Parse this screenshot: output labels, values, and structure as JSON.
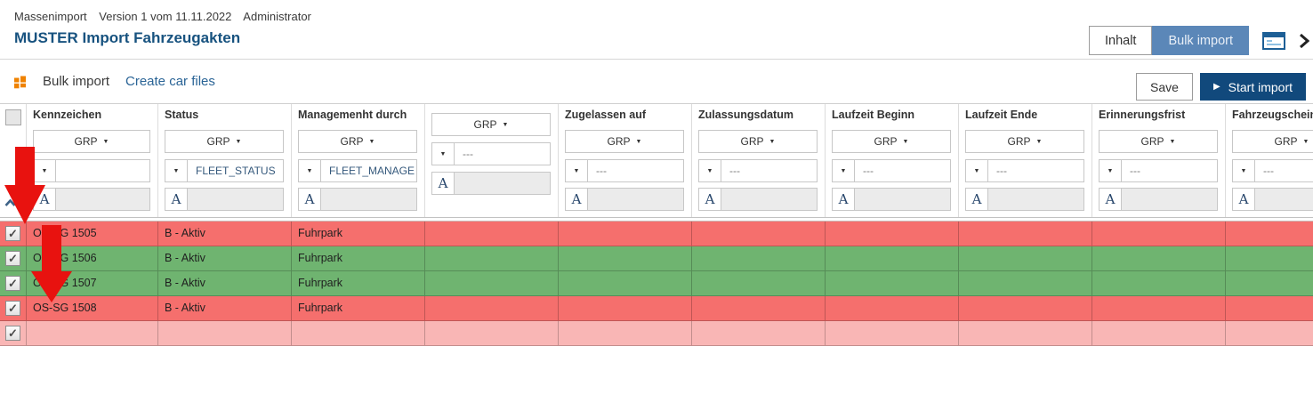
{
  "header": {
    "app_name": "Massenimport",
    "version_text": "Version 1 vom 11.11.2022",
    "user": "Administrator",
    "title": "MUSTER Import Fahrzeugakten",
    "nav": [
      {
        "label": "Inhalt",
        "active": false
      },
      {
        "label": "Bulk import",
        "active": true
      }
    ],
    "icons": {
      "form_panel": "form-panel-icon",
      "chevron_right": "chevron-right-icon"
    }
  },
  "toolbar": {
    "module_icon": "orange-grid-icon",
    "tabs": [
      {
        "label": "Bulk import",
        "active": true
      },
      {
        "label": "Create car files",
        "active": false
      }
    ],
    "save_label": "Save",
    "start_import_label": "Start import",
    "start_import_icon": "play-icon"
  },
  "table": {
    "filter_labels": {
      "grp": "GRP",
      "text_marker": "A"
    },
    "columns": [
      {
        "label": "Kennzeichen",
        "filter_value": ""
      },
      {
        "label": "Status",
        "filter_value": "FLEET_STATUS"
      },
      {
        "label": "Managemenht durch",
        "filter_value": "FLEET_MANAGE"
      },
      {
        "label": "",
        "filter_value": "---"
      },
      {
        "label": "Zugelassen auf",
        "filter_value": "---"
      },
      {
        "label": "Zulassungsdatum",
        "filter_value": "---"
      },
      {
        "label": "Laufzeit Beginn",
        "filter_value": "---"
      },
      {
        "label": "Laufzeit Ende",
        "filter_value": "---"
      },
      {
        "label": "Erinnerungsfrist",
        "filter_value": "---"
      },
      {
        "label": "Fahrzeugschein",
        "filter_value": "---"
      }
    ],
    "rows": [
      {
        "checked": true,
        "kennzeichen": "OS-SG 1505",
        "status": "B - Aktiv",
        "management": "Fuhrpark",
        "state": "error"
      },
      {
        "checked": true,
        "kennzeichen": "OS-SG 1506",
        "status": "B - Aktiv",
        "management": "Fuhrpark",
        "state": "ok"
      },
      {
        "checked": true,
        "kennzeichen": "OS-SG 1507",
        "status": "B - Aktiv",
        "management": "Fuhrpark",
        "state": "ok"
      },
      {
        "checked": true,
        "kennzeichen": "OS-SG 1508",
        "status": "B - Aktiv",
        "management": "Fuhrpark",
        "state": "error"
      },
      {
        "checked": true,
        "kennzeichen": "",
        "status": "",
        "management": "",
        "state": "empty"
      }
    ]
  },
  "annotations": {
    "arrow_count": 2,
    "arrow_color": "#e8120f"
  },
  "colors": {
    "title_blue": "#17527f",
    "nav_active_blue": "#5b87b8",
    "primary_button_blue": "#11497c",
    "link_blue": "#2a6496",
    "row_error_red": "#f56f6d",
    "row_ok_green": "#6fb470",
    "row_empty_pink": "#f9b6b5",
    "module_icon_orange": "#ef8200"
  }
}
